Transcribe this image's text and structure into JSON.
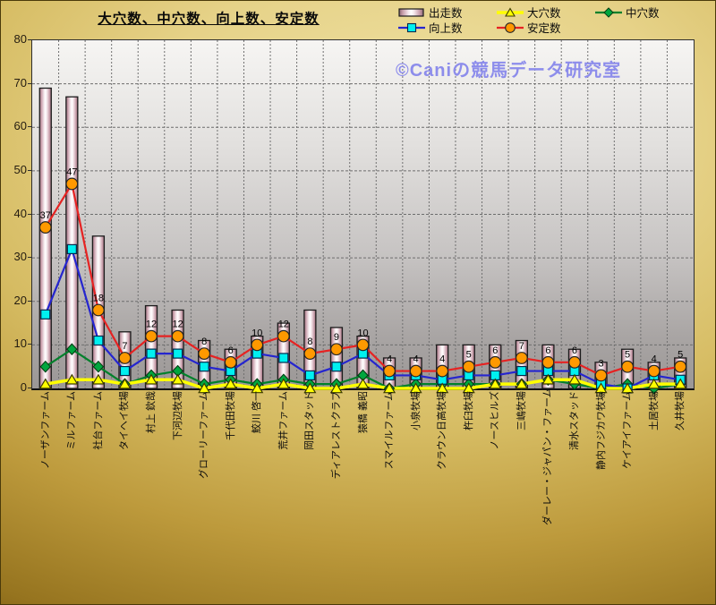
{
  "title": "大穴数、中穴数、向上数、安定数",
  "watermark": "©Caniの競馬データ研究室",
  "axis": {
    "yticks": [
      0,
      10,
      20,
      30,
      40,
      50,
      60,
      70,
      80
    ],
    "ymin": 0,
    "ymax": 80
  },
  "chart_data": {
    "type": "bar",
    "subtype": "bar-line-combo",
    "title": "大穴数、中穴数、向上数、安定数",
    "ylim": [
      0,
      80
    ],
    "grid": "on",
    "legend_position": "top-right",
    "categories": [
      "ノーザンファーム",
      "ミルファーム",
      "社台ファーム",
      "タイヘイ牧場",
      "村上 欽哉",
      "下河辺牧場",
      "グローリーファーム",
      "千代田牧場",
      "鮫川 啓一",
      "荒井ファーム",
      "岡田スタッド",
      "ディアレストクラブ",
      "猿橋 義昭",
      "スマイルファーム",
      "小泉牧場",
      "クラウン日高牧場",
      "杵臼牧場",
      "ノースヒルズ",
      "三嶋牧場",
      "ダーレー・ジャパン・ファーム",
      "清水スタッド",
      "静内フジカワ牧場",
      "ケイアイファーム",
      "土居牧場",
      "久井牧場"
    ],
    "series": [
      {
        "name": "出走数",
        "type": "bar",
        "edge_color": "#8f6b77",
        "mid_color": "#ffffff",
        "stroke": "#1c1c1c",
        "values": [
          69,
          67,
          35,
          13,
          19,
          18,
          11,
          9,
          12,
          15,
          18,
          14,
          12,
          7,
          7,
          10,
          10,
          10,
          11,
          10,
          9,
          6,
          9,
          6,
          7
        ]
      },
      {
        "name": "大穴数",
        "type": "line",
        "marker": "triangle",
        "line_color": "#ffff00",
        "line_width": 3.5,
        "marker_fill": "#ffff00",
        "marker_stroke": "#3c3c00",
        "values": [
          1,
          2,
          2,
          1,
          2,
          2,
          0,
          1,
          0,
          1,
          0,
          0,
          1,
          0,
          0,
          0,
          0,
          1,
          1,
          2,
          2,
          0,
          0,
          1,
          1
        ]
      },
      {
        "name": "中穴数",
        "type": "line",
        "marker": "diamond",
        "line_color": "#00802b",
        "line_width": 2.2,
        "marker_fill": "#00a63e",
        "marker_stroke": "#003d14",
        "values": [
          5,
          9,
          5,
          1,
          3,
          4,
          1,
          2,
          1,
          2,
          1,
          1,
          3,
          0,
          1,
          1,
          1,
          1,
          1,
          2,
          1,
          0,
          1,
          0,
          1
        ]
      },
      {
        "name": "向上数",
        "type": "line",
        "marker": "square",
        "line_color": "#2525cf",
        "line_width": 2.2,
        "marker_fill": "#00f0f0",
        "marker_stroke": "#00284d",
        "values": [
          17,
          32,
          11,
          4,
          8,
          8,
          5,
          4,
          8,
          7,
          3,
          5,
          8,
          3,
          3,
          2,
          3,
          3,
          4,
          4,
          4,
          1,
          0,
          3,
          2
        ]
      },
      {
        "name": "安定数",
        "type": "line",
        "marker": "circle",
        "line_color": "#e62222",
        "line_width": 2.2,
        "marker_fill": "#ff9900",
        "marker_stroke": "#242424",
        "data_labels": true,
        "values": [
          37,
          47,
          18,
          7,
          12,
          12,
          8,
          6,
          10,
          12,
          8,
          9,
          10,
          4,
          4,
          4,
          5,
          6,
          7,
          6,
          6,
          3,
          5,
          4,
          5
        ]
      }
    ]
  }
}
